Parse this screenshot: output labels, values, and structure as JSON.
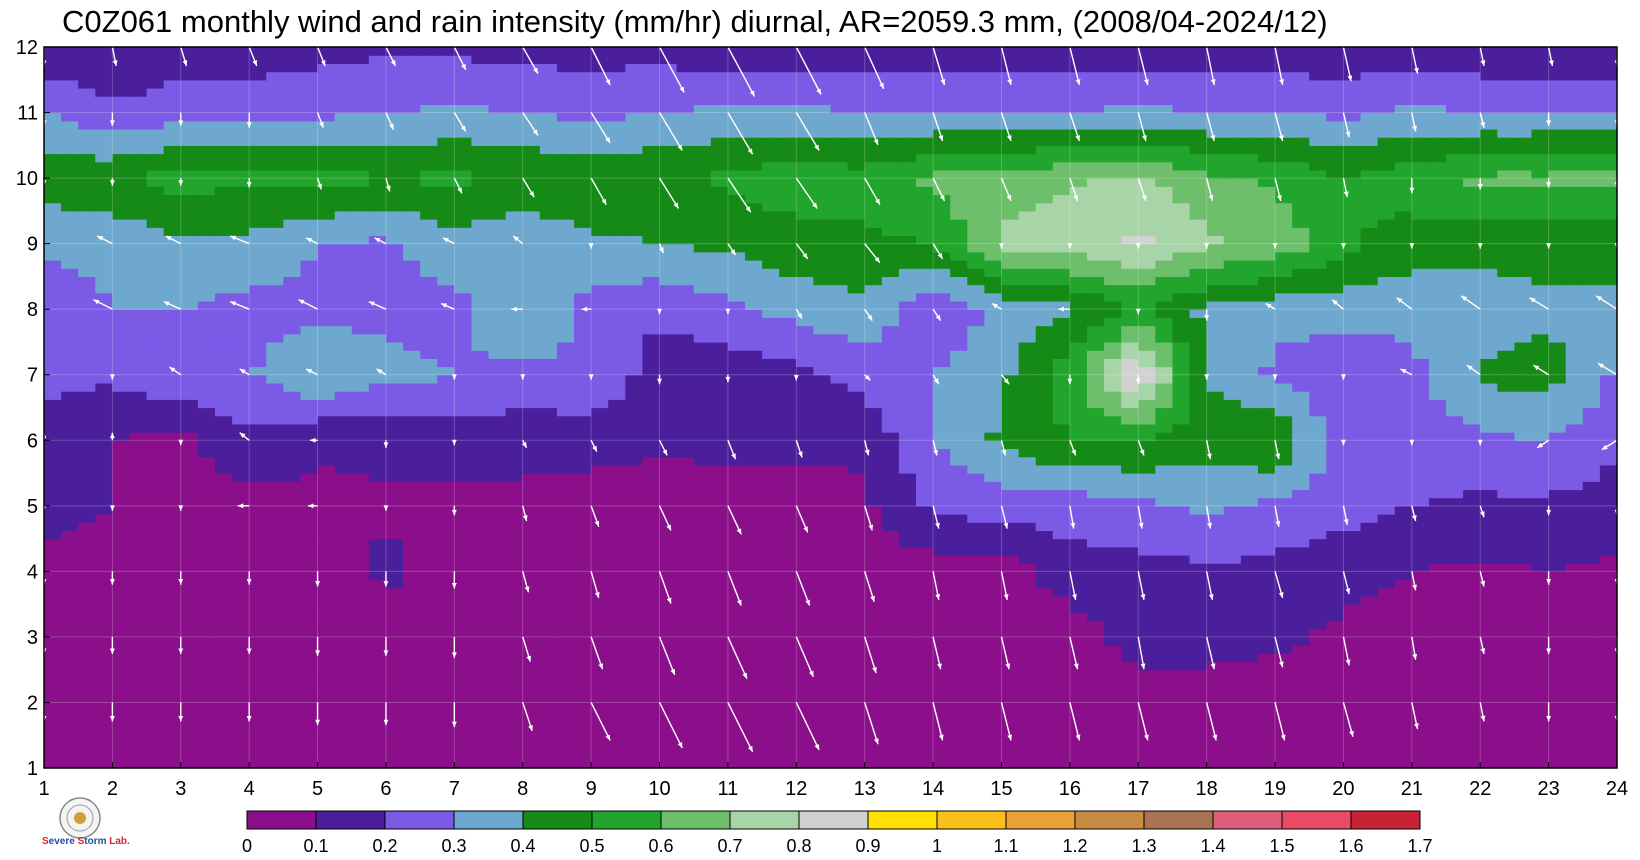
{
  "chart_data": {
    "type": "contour",
    "title": "C0Z061 monthly wind and rain intensity (mm/hr) diurnal, AR=2059.3 mm, (2008/04-2024/12)",
    "xlabel": "",
    "ylabel": "",
    "xlim": [
      1,
      24
    ],
    "ylim": [
      1,
      12
    ],
    "x_ticks": [
      "1",
      "2",
      "3",
      "4",
      "5",
      "6",
      "7",
      "8",
      "9",
      "10",
      "11",
      "12",
      "13",
      "14",
      "15",
      "16",
      "17",
      "18",
      "19",
      "20",
      "21",
      "22",
      "23",
      "24"
    ],
    "y_ticks": [
      "1",
      "2",
      "3",
      "4",
      "5",
      "6",
      "7",
      "8",
      "9",
      "10",
      "11",
      "12"
    ],
    "grid": true,
    "colorbar": {
      "placement": "bottom",
      "levels": [
        "0",
        "0.1",
        "0.2",
        "0.3",
        "0.4",
        "0.5",
        "0.6",
        "0.7",
        "0.8",
        "0.9",
        "1",
        "1.1",
        "1.2",
        "1.3",
        "1.4",
        "1.5",
        "1.6",
        "1.7"
      ],
      "colors": [
        "#8b0f8b",
        "#4b1e9c",
        "#7b5ae6",
        "#6fa8cf",
        "#158a16",
        "#22a52c",
        "#6dbf6b",
        "#a8d5a8",
        "#d1d1d1",
        "#ffe000",
        "#fbbf1a",
        "#e8a236",
        "#c98a44",
        "#a87552",
        "#df5f7a",
        "#ea4a64",
        "#c92236"
      ]
    },
    "rain_intensity_mm_hr": {
      "hours": [
        1,
        2,
        3,
        4,
        5,
        6,
        7,
        8,
        9,
        10,
        11,
        12,
        13,
        14,
        15,
        16,
        17,
        18,
        19,
        20,
        21,
        22,
        23,
        24
      ],
      "months": [
        1,
        2,
        3,
        4,
        5,
        6,
        7,
        8,
        9,
        10,
        11,
        12
      ],
      "values": [
        [
          0.05,
          0.05,
          0.05,
          0.05,
          0.05,
          0.05,
          0.05,
          0.05,
          0.05,
          0.05,
          0.05,
          0.05,
          0.05,
          0.05,
          0.05,
          0.05,
          0.05,
          0.05,
          0.05,
          0.05,
          0.05,
          0.05,
          0.05,
          0.05
        ],
        [
          0.05,
          0.05,
          0.05,
          0.05,
          0.05,
          0.05,
          0.05,
          0.05,
          0.05,
          0.05,
          0.05,
          0.05,
          0.05,
          0.05,
          0.05,
          0.05,
          0.05,
          0.05,
          0.05,
          0.05,
          0.05,
          0.05,
          0.05,
          0.05
        ],
        [
          0.05,
          0.05,
          0.05,
          0.05,
          0.05,
          0.05,
          0.05,
          0.05,
          0.05,
          0.05,
          0.05,
          0.05,
          0.05,
          0.05,
          0.05,
          0.05,
          0.14,
          0.14,
          0.12,
          0.08,
          0.05,
          0.05,
          0.05,
          0.05
        ],
        [
          0.08,
          0.06,
          0.05,
          0.05,
          0.05,
          0.12,
          0.06,
          0.05,
          0.05,
          0.05,
          0.05,
          0.05,
          0.05,
          0.05,
          0.05,
          0.15,
          0.16,
          0.18,
          0.17,
          0.13,
          0.1,
          0.08,
          0.1,
          0.08
        ],
        [
          0.12,
          0.1,
          0.09,
          0.06,
          0.08,
          0.09,
          0.07,
          0.07,
          0.06,
          0.05,
          0.06,
          0.06,
          0.08,
          0.22,
          0.25,
          0.25,
          0.28,
          0.32,
          0.28,
          0.24,
          0.2,
          0.18,
          0.18,
          0.15
        ],
        [
          0.15,
          0.1,
          0.06,
          0.18,
          0.11,
          0.12,
          0.15,
          0.14,
          0.13,
          0.12,
          0.12,
          0.12,
          0.12,
          0.3,
          0.42,
          0.5,
          0.5,
          0.45,
          0.5,
          0.25,
          0.24,
          0.28,
          0.3,
          0.22
        ],
        [
          0.23,
          0.22,
          0.28,
          0.29,
          0.4,
          0.33,
          0.3,
          0.27,
          0.3,
          0.14,
          0.14,
          0.16,
          0.24,
          0.3,
          0.38,
          0.56,
          0.92,
          0.4,
          0.28,
          0.22,
          0.27,
          0.42,
          0.44,
          0.28
        ],
        [
          0.24,
          0.3,
          0.3,
          0.26,
          0.28,
          0.27,
          0.26,
          0.42,
          0.25,
          0.22,
          0.28,
          0.34,
          0.38,
          0.2,
          0.33,
          0.38,
          0.5,
          0.38,
          0.33,
          0.34,
          0.33,
          0.34,
          0.38,
          0.4
        ],
        [
          0.32,
          0.33,
          0.38,
          0.38,
          0.3,
          0.28,
          0.36,
          0.32,
          0.38,
          0.4,
          0.42,
          0.46,
          0.48,
          0.5,
          0.72,
          0.76,
          0.82,
          0.72,
          0.68,
          0.52,
          0.45,
          0.44,
          0.44,
          0.4
        ],
        [
          0.45,
          0.48,
          0.54,
          0.52,
          0.54,
          0.5,
          0.52,
          0.48,
          0.48,
          0.48,
          0.52,
          0.56,
          0.54,
          0.62,
          0.64,
          0.68,
          0.72,
          0.62,
          0.58,
          0.5,
          0.56,
          0.62,
          0.62,
          0.64
        ],
        [
          0.3,
          0.22,
          0.26,
          0.26,
          0.28,
          0.3,
          0.32,
          0.3,
          0.28,
          0.3,
          0.32,
          0.32,
          0.3,
          0.3,
          0.3,
          0.3,
          0.32,
          0.3,
          0.3,
          0.28,
          0.32,
          0.3,
          0.3,
          0.3
        ],
        [
          0.12,
          0.1,
          0.14,
          0.14,
          0.16,
          0.18,
          0.18,
          0.16,
          0.16,
          0.16,
          0.12,
          0.12,
          0.14,
          0.12,
          0.14,
          0.12,
          0.14,
          0.14,
          0.14,
          0.12,
          0.14,
          0.12,
          0.12,
          0.12
        ]
      ]
    },
    "wind_vectors": {
      "note": "",
      "u": [
        [
          0,
          0,
          0,
          0,
          0,
          0,
          0,
          0.06,
          0.12,
          0.16,
          0.16,
          0.14,
          0.06,
          0.05,
          0.06,
          0.06,
          0.04,
          0.05,
          0.06,
          0.04,
          0.02,
          0.05,
          0,
          0
        ],
        [
          0,
          0,
          0,
          0,
          0,
          0,
          0,
          0.05,
          0.1,
          0.12,
          0.13,
          0.12,
          0.07,
          0.05,
          0.05,
          0.05,
          0.05,
          0.05,
          0.05,
          0.05,
          0.03,
          0.02,
          0,
          0
        ],
        [
          0,
          0,
          0,
          0,
          0,
          0,
          0,
          0.04,
          0.06,
          0.08,
          0.1,
          0.09,
          0.06,
          0.04,
          0.04,
          0.04,
          0.03,
          0.04,
          0.04,
          0.03,
          0.02,
          0.02,
          0,
          0
        ],
        [
          0,
          0,
          0,
          0,
          0,
          0,
          0,
          0.03,
          0.04,
          0.06,
          0.07,
          0.07,
          0.05,
          0.03,
          0.03,
          0.03,
          0.03,
          0.03,
          0.04,
          0.03,
          0.02,
          0.02,
          0,
          0
        ],
        [
          0,
          0,
          0,
          -0.06,
          -0.05,
          0,
          0,
          0.02,
          0.04,
          0.06,
          0.07,
          0.06,
          0.04,
          0.03,
          0.03,
          0.02,
          0.02,
          0.02,
          0.02,
          0.02,
          0.02,
          0.02,
          0,
          0
        ],
        [
          0,
          0,
          0,
          -0.05,
          -0.04,
          0,
          0,
          0.02,
          0.03,
          0.04,
          0.04,
          0.03,
          0.02,
          0.02,
          0.02,
          0.03,
          0.03,
          0.02,
          0.02,
          0,
          0,
          0,
          -0.06,
          -0.08
        ],
        [
          -0.08,
          0,
          -0.06,
          -0.05,
          -0.06,
          -0.05,
          0,
          0,
          0,
          0,
          0,
          0,
          0.03,
          0.03,
          0.04,
          0,
          0,
          0,
          0,
          0,
          -0.06,
          -0.07,
          -0.08,
          -0.1
        ],
        [
          -0.09,
          -0.1,
          -0.09,
          -0.1,
          -0.1,
          -0.09,
          -0.07,
          -0.06,
          -0.05,
          0,
          0,
          0.03,
          0.04,
          0.04,
          -0.05,
          -0.06,
          0,
          0,
          -0.05,
          -0.06,
          -0.08,
          -0.1,
          -0.1,
          -0.11
        ],
        [
          -0.08,
          -0.08,
          -0.08,
          -0.1,
          -0.06,
          -0.06,
          -0.06,
          -0.05,
          0,
          0.02,
          0.04,
          0.06,
          0.08,
          0.05,
          0,
          0,
          0,
          0,
          0,
          0,
          0,
          0,
          0,
          0
        ],
        [
          0,
          0,
          0,
          0,
          0.02,
          0.02,
          0.04,
          0.06,
          0.08,
          0.1,
          0.12,
          0.11,
          0.08,
          0.06,
          0.05,
          0.04,
          0.04,
          0.03,
          0.03,
          0.02,
          0,
          0,
          0,
          0
        ],
        [
          0,
          0,
          0,
          0,
          0.03,
          0.04,
          0.06,
          0.08,
          0.1,
          0.12,
          0.13,
          0.12,
          0.07,
          0.05,
          0.05,
          0.05,
          0.04,
          0.04,
          0.04,
          0.03,
          0.02,
          0.02,
          0,
          0
        ],
        [
          0,
          0.02,
          0.03,
          0.04,
          0.04,
          0.05,
          0.06,
          0.08,
          0.1,
          0.13,
          0.14,
          0.13,
          0.1,
          0.06,
          0.05,
          0.05,
          0.05,
          0.04,
          0.04,
          0.04,
          0.03,
          0.02,
          0.02,
          0
        ]
      ],
      "v": [
        [
          -0.1,
          -0.1,
          -0.1,
          -0.1,
          -0.12,
          -0.12,
          -0.14,
          -0.16,
          -0.22,
          -0.26,
          -0.28,
          -0.27,
          -0.24,
          -0.22,
          -0.2,
          -0.2,
          -0.2,
          -0.2,
          -0.2,
          -0.18,
          -0.14,
          -0.1,
          -0.1,
          -0.1
        ],
        [
          -0.1,
          -0.1,
          -0.1,
          -0.1,
          -0.12,
          -0.12,
          -0.13,
          -0.15,
          -0.2,
          -0.24,
          -0.26,
          -0.25,
          -0.22,
          -0.2,
          -0.2,
          -0.2,
          -0.2,
          -0.2,
          -0.2,
          -0.18,
          -0.14,
          -0.1,
          -0.1,
          -0.1
        ],
        [
          -0.09,
          -0.09,
          -0.09,
          -0.09,
          -0.1,
          -0.1,
          -0.11,
          -0.13,
          -0.17,
          -0.2,
          -0.22,
          -0.21,
          -0.19,
          -0.17,
          -0.17,
          -0.17,
          -0.17,
          -0.17,
          -0.16,
          -0.15,
          -0.12,
          -0.09,
          -0.09,
          -0.09
        ],
        [
          -0.07,
          -0.07,
          -0.07,
          -0.07,
          -0.08,
          -0.08,
          -0.09,
          -0.11,
          -0.14,
          -0.17,
          -0.18,
          -0.18,
          -0.16,
          -0.15,
          -0.15,
          -0.15,
          -0.15,
          -0.15,
          -0.14,
          -0.12,
          -0.1,
          -0.08,
          -0.07,
          -0.07
        ],
        [
          0,
          0,
          0,
          0,
          0,
          0,
          -0.05,
          -0.08,
          -0.11,
          -0.13,
          -0.15,
          -0.14,
          -0.13,
          -0.12,
          -0.12,
          -0.12,
          -0.12,
          -0.12,
          -0.11,
          -0.1,
          -0.08,
          -0.06,
          -0.05,
          -0.05
        ],
        [
          0.04,
          0.04,
          0,
          0.04,
          0,
          -0.04,
          0,
          -0.04,
          -0.06,
          -0.08,
          -0.1,
          -0.09,
          -0.08,
          -0.08,
          -0.08,
          -0.08,
          -0.08,
          -0.1,
          -0.1,
          0,
          0,
          0,
          -0.04,
          -0.05
        ],
        [
          0.06,
          0,
          0.04,
          0.03,
          0.03,
          0.03,
          0,
          0,
          0,
          -0.05,
          -0.04,
          -0.03,
          -0.03,
          -0.05,
          -0.05,
          -0.05,
          -0.05,
          0,
          0,
          0,
          0.03,
          0.05,
          0.05,
          0.06
        ],
        [
          0.05,
          0.05,
          0.04,
          0.04,
          0.05,
          0.04,
          0.03,
          0,
          0,
          0,
          0,
          -0.05,
          -0.06,
          -0.06,
          0.03,
          0,
          0,
          -0.06,
          0.03,
          0.05,
          0.06,
          0.07,
          0.06,
          0.07
        ],
        [
          0.04,
          0.04,
          0.04,
          0.04,
          0.03,
          0.03,
          0.03,
          0.04,
          0,
          -0.05,
          -0.06,
          -0.08,
          -0.1,
          -0.08,
          0,
          0,
          0,
          0,
          0,
          0,
          0,
          0,
          0,
          0
        ],
        [
          -0.04,
          -0.04,
          -0.04,
          -0.05,
          -0.06,
          -0.07,
          -0.08,
          -0.1,
          -0.14,
          -0.16,
          -0.18,
          -0.16,
          -0.14,
          -0.12,
          -0.12,
          -0.12,
          -0.12,
          -0.12,
          -0.12,
          -0.1,
          -0.08,
          -0.06,
          -0.05,
          -0.05
        ],
        [
          -0.07,
          -0.07,
          -0.07,
          -0.08,
          -0.08,
          -0.09,
          -0.1,
          -0.12,
          -0.16,
          -0.2,
          -0.22,
          -0.2,
          -0.17,
          -0.15,
          -0.15,
          -0.15,
          -0.15,
          -0.15,
          -0.15,
          -0.13,
          -0.1,
          -0.08,
          -0.07,
          -0.07
        ],
        [
          -0.1,
          -0.1,
          -0.1,
          -0.1,
          -0.1,
          -0.1,
          -0.12,
          -0.14,
          -0.2,
          -0.24,
          -0.26,
          -0.25,
          -0.22,
          -0.2,
          -0.2,
          -0.2,
          -0.2,
          -0.2,
          -0.2,
          -0.18,
          -0.14,
          -0.1,
          -0.1,
          -0.1
        ]
      ]
    }
  },
  "logo": {
    "name": "severe-storm-lab-logo",
    "text_line": [
      "S",
      "evere ",
      "S",
      "torm ",
      "Lab."
    ]
  }
}
